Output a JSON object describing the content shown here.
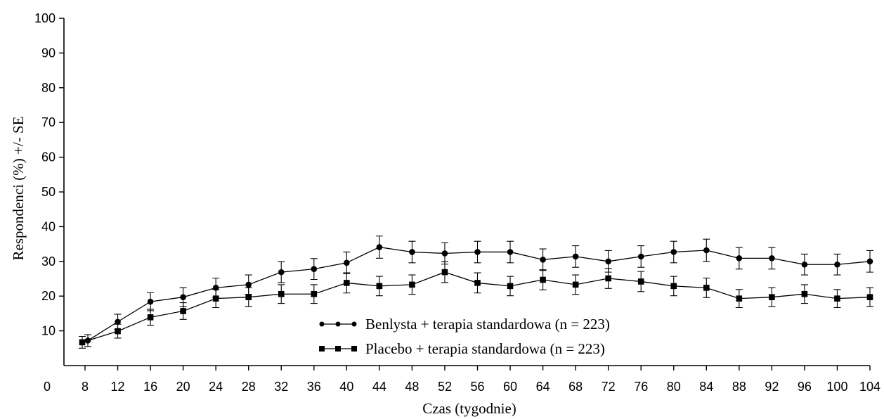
{
  "chart_data": {
    "type": "line",
    "xlabel": "Czas (tygodnie)",
    "ylabel": "Respondenci (%) +/- SE",
    "xlim": [
      0,
      104
    ],
    "ylim": [
      0,
      100
    ],
    "x_ticks": [
      0,
      8,
      12,
      16,
      20,
      24,
      28,
      32,
      36,
      40,
      44,
      48,
      52,
      56,
      60,
      64,
      68,
      72,
      76,
      80,
      84,
      88,
      92,
      96,
      100,
      104
    ],
    "y_ticks": [
      10,
      20,
      30,
      40,
      50,
      60,
      70,
      80,
      90,
      100
    ],
    "grid": false,
    "legend_position": "bottom-center",
    "x": [
      8,
      12,
      16,
      20,
      24,
      28,
      32,
      36,
      40,
      44,
      48,
      52,
      56,
      60,
      64,
      68,
      72,
      76,
      80,
      84,
      88,
      92,
      96,
      100,
      104
    ],
    "series": [
      {
        "name": "Benlysta + terapia standardowa (n = 223)",
        "marker": "circle",
        "values": [
          7.2,
          12.6,
          18.4,
          19.7,
          22.4,
          23.3,
          26.9,
          27.8,
          29.6,
          34.1,
          32.7,
          32.3,
          32.7,
          32.7,
          30.5,
          31.4,
          30.0,
          31.4,
          32.7,
          33.2,
          30.9,
          30.9,
          29.1,
          29.1,
          30.0
        ],
        "se": [
          1.7,
          2.2,
          2.6,
          2.7,
          2.8,
          2.8,
          3.0,
          3.0,
          3.1,
          3.2,
          3.1,
          3.1,
          3.1,
          3.1,
          3.1,
          3.1,
          3.1,
          3.1,
          3.1,
          3.2,
          3.1,
          3.1,
          3.0,
          3.0,
          3.1
        ]
      },
      {
        "name": "Placebo + terapia standardowa (n = 223)",
        "marker": "square",
        "values": [
          6.7,
          9.9,
          13.9,
          15.7,
          19.3,
          19.7,
          20.6,
          20.6,
          23.8,
          22.9,
          23.3,
          26.9,
          23.8,
          22.9,
          24.7,
          23.3,
          25.1,
          24.2,
          22.9,
          22.4,
          19.3,
          19.7,
          20.6,
          19.3,
          19.7
        ],
        "se": [
          1.7,
          2.0,
          2.3,
          2.4,
          2.6,
          2.7,
          2.7,
          2.7,
          2.9,
          2.8,
          2.8,
          3.0,
          2.9,
          2.8,
          2.9,
          2.8,
          2.9,
          2.9,
          2.8,
          2.8,
          2.6,
          2.7,
          2.7,
          2.6,
          2.7
        ]
      }
    ]
  }
}
